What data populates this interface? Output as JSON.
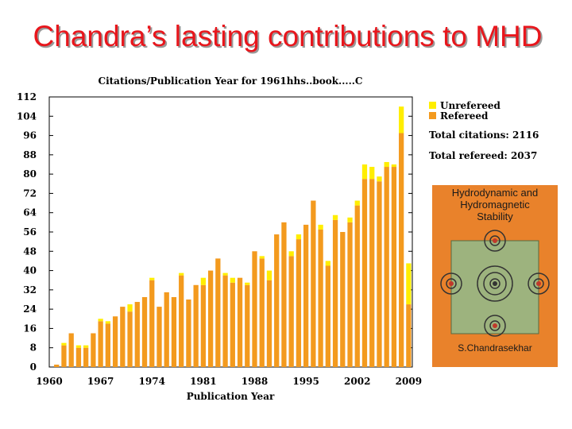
{
  "slide_title": "Chandra’s lasting contributions to MHD",
  "chart_data": {
    "type": "stacked_bar",
    "title": "Citations/Publication Year for 1961hhs..book.....C",
    "x_label": "Publication Year",
    "x": [
      1961,
      1962,
      1963,
      1964,
      1965,
      1966,
      1967,
      1968,
      1969,
      1970,
      1971,
      1972,
      1973,
      1974,
      1975,
      1976,
      1977,
      1978,
      1979,
      1980,
      1981,
      1982,
      1983,
      1984,
      1985,
      1986,
      1987,
      1988,
      1989,
      1990,
      1991,
      1992,
      1993,
      1994,
      1995,
      1996,
      1997,
      1998,
      1999,
      2000,
      2001,
      2002,
      2003,
      2004,
      2005,
      2006,
      2007,
      2008,
      2009
    ],
    "series": [
      {
        "name": "Refereed",
        "color": "#f39a1e",
        "values": [
          1,
          9,
          14,
          8,
          8,
          14,
          19,
          18,
          21,
          25,
          23,
          27,
          29,
          36,
          25,
          31,
          29,
          38,
          28,
          34,
          34,
          40,
          45,
          38,
          35,
          37,
          34,
          48,
          45,
          36,
          55,
          60,
          46,
          53,
          59,
          69,
          57,
          42,
          61,
          56,
          60,
          67,
          78,
          78,
          77,
          83,
          83,
          97,
          26
        ]
      },
      {
        "name": "Unrefereed",
        "color": "#ffee00",
        "values": [
          0,
          1,
          0,
          1,
          1,
          0,
          1,
          1,
          0,
          0,
          3,
          0,
          0,
          1,
          0,
          0,
          0,
          1,
          0,
          0,
          3,
          0,
          0,
          1,
          2,
          0,
          1,
          0,
          1,
          4,
          0,
          0,
          2,
          2,
          0,
          0,
          2,
          2,
          2,
          0,
          2,
          2,
          6,
          5,
          2,
          2,
          1,
          11,
          17
        ]
      }
    ],
    "xlim": [
      1960,
      2009.5
    ],
    "xticks": [
      1960,
      1967,
      1974,
      1981,
      1988,
      1995,
      2002,
      2009
    ],
    "ylim": [
      0,
      112
    ],
    "yticks": [
      0,
      8,
      16,
      24,
      32,
      40,
      48,
      56,
      64,
      72,
      80,
      88,
      96,
      104,
      112
    ],
    "annotations": [
      "Total citations: 2116",
      "Total refereed: 2037"
    ]
  },
  "book": {
    "title_lines": [
      "Hydrodynamic and",
      "Hydromagnetic",
      "Stability"
    ],
    "author": "S.Chandrasekhar"
  }
}
